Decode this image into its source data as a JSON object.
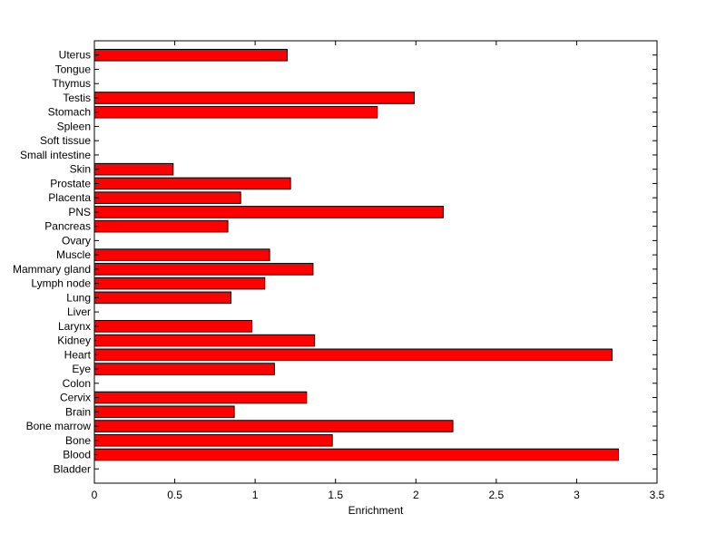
{
  "chart_data": {
    "type": "bar",
    "orientation": "horizontal",
    "title": "",
    "xlabel": "Enrichment",
    "ylabel": "",
    "xlim": [
      0,
      3.5
    ],
    "xticks": [
      "0",
      "0.5",
      "1",
      "1.5",
      "2",
      "2.5",
      "3",
      "3.5"
    ],
    "grid": false,
    "bar_color": "#ff0000",
    "bar_edge_color": "#000000",
    "categories": [
      "Bladder",
      "Blood",
      "Bone",
      "Bone marrow",
      "Brain",
      "Cervix",
      "Colon",
      "Eye",
      "Heart",
      "Kidney",
      "Larynx",
      "Liver",
      "Lung",
      "Lymph node",
      "Mammary gland",
      "Muscle",
      "Ovary",
      "Pancreas",
      "PNS",
      "Placenta",
      "Prostate",
      "Skin",
      "Small intestine",
      "Soft tissue",
      "Spleen",
      "Stomach",
      "Testis",
      "Thymus",
      "Tongue",
      "Uterus"
    ],
    "values": [
      0,
      3.26,
      1.48,
      2.23,
      0.87,
      1.32,
      0,
      1.12,
      3.22,
      1.37,
      0.98,
      0,
      0.85,
      1.06,
      1.36,
      1.09,
      0,
      0.83,
      2.17,
      0.91,
      1.22,
      0.49,
      0,
      0,
      0,
      1.76,
      1.99,
      0,
      0,
      1.2
    ]
  }
}
